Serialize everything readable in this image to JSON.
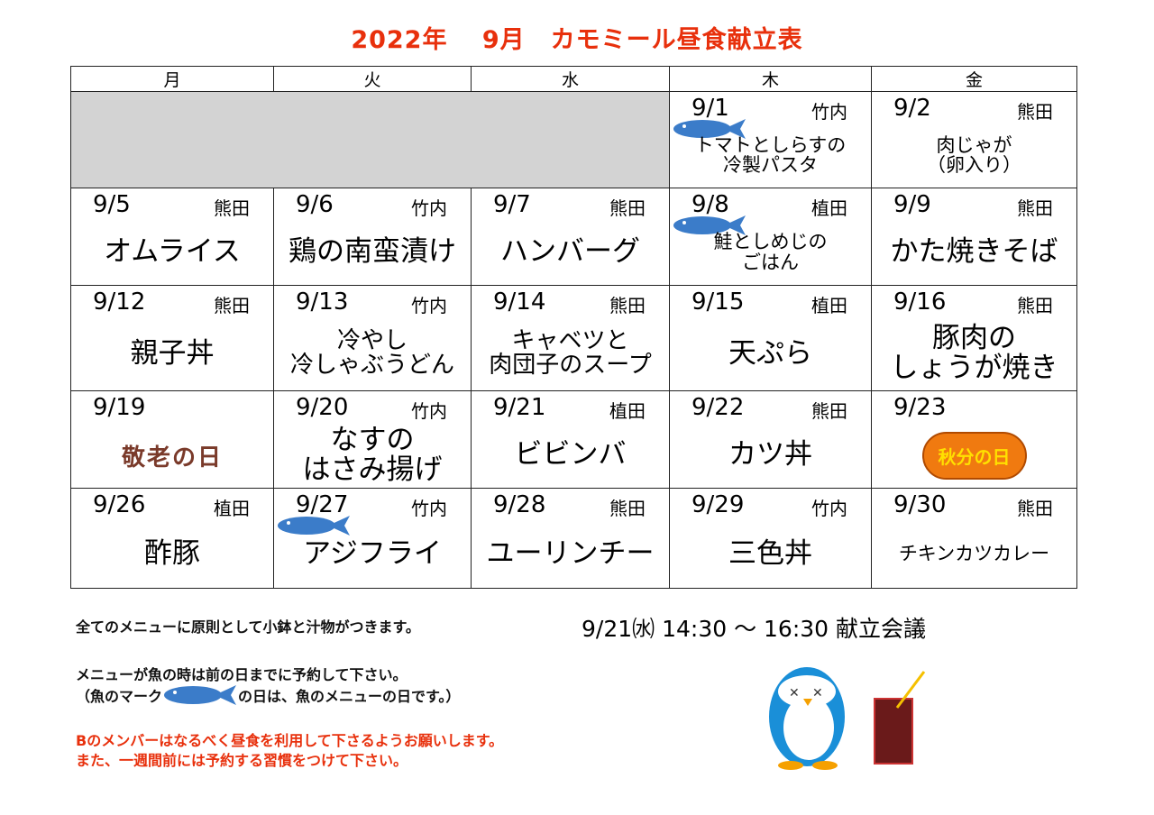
{
  "title": {
    "year": "2022年",
    "month": "9月",
    "name": "カモミール昼食献立表"
  },
  "weekdays": [
    "月",
    "火",
    "水",
    "木",
    "金"
  ],
  "weeks": [
    [
      null,
      null,
      null,
      {
        "date": "9/1",
        "cook": "竹内",
        "menu": [
          "トマトとしらすの",
          "冷製パスタ"
        ],
        "fish": true,
        "size": "small"
      },
      {
        "date": "9/2",
        "cook": "熊田",
        "menu": [
          "肉じゃが",
          "（卵入り）"
        ],
        "size": "small"
      }
    ],
    [
      {
        "date": "9/5",
        "cook": "熊田",
        "menu": [
          "オムライス"
        ],
        "size": "big"
      },
      {
        "date": "9/6",
        "cook": "竹内",
        "menu": [
          "鶏の南蛮漬け"
        ],
        "size": "big"
      },
      {
        "date": "9/7",
        "cook": "熊田",
        "menu": [
          "ハンバーグ"
        ],
        "size": "big"
      },
      {
        "date": "9/8",
        "cook": "植田",
        "menu": [
          "鮭としめじの",
          "ごはん"
        ],
        "fish": true,
        "size": "small"
      },
      {
        "date": "9/9",
        "cook": "熊田",
        "menu": [
          "かた焼きそば"
        ],
        "size": "big"
      }
    ],
    [
      {
        "date": "9/12",
        "cook": "熊田",
        "menu": [
          "親子丼"
        ],
        "size": "big"
      },
      {
        "date": "9/13",
        "cook": "竹内",
        "menu": [
          "冷やし",
          "冷しゃぶうどん"
        ],
        "size": "mid"
      },
      {
        "date": "9/14",
        "cook": "熊田",
        "menu": [
          "キャベツと",
          "肉団子のスープ"
        ],
        "size": "mid"
      },
      {
        "date": "9/15",
        "cook": "植田",
        "menu": [
          "天ぷら"
        ],
        "size": "big"
      },
      {
        "date": "9/16",
        "cook": "熊田",
        "menu": [
          "豚肉の",
          "しょうが焼き"
        ],
        "size": "big"
      }
    ],
    [
      {
        "date": "9/19",
        "cook": "",
        "holiday": "敬老の日",
        "holiday_style": "keiro"
      },
      {
        "date": "9/20",
        "cook": "竹内",
        "menu": [
          "なすの",
          "はさみ揚げ"
        ],
        "size": "big"
      },
      {
        "date": "9/21",
        "cook": "植田",
        "menu": [
          "ビビンバ"
        ],
        "size": "big"
      },
      {
        "date": "9/22",
        "cook": "熊田",
        "menu": [
          "カツ丼"
        ],
        "size": "big"
      },
      {
        "date": "9/23",
        "cook": "",
        "holiday": "秋分の日",
        "holiday_style": "shubun"
      }
    ],
    [
      {
        "date": "9/26",
        "cook": "植田",
        "menu": [
          "酢豚"
        ],
        "size": "big"
      },
      {
        "date": "9/27",
        "cook": "竹内",
        "menu": [
          "アジフライ"
        ],
        "fish": true,
        "size": "big"
      },
      {
        "date": "9/28",
        "cook": "熊田",
        "menu": [
          "ユーリンチー"
        ],
        "size": "big"
      },
      {
        "date": "9/29",
        "cook": "竹内",
        "menu": [
          "三色丼"
        ],
        "size": "big"
      },
      {
        "date": "9/30",
        "cook": "熊田",
        "menu": [
          "チキンカツカレー"
        ],
        "size": "small"
      }
    ]
  ],
  "notes": {
    "line1": "全てのメニューに原則として小鉢と汁物がつきます。",
    "line2": "メニューが魚の時は前の日までに予約して下さい。",
    "line3a": "（魚のマーク",
    "line3b": "の日は、魚のメニューの日です。）",
    "line4": "Bのメンバーはなるべく昼食を利用して下さるようお願いします。",
    "line5": "また、一週間前には予約する習慣をつけて下さい。"
  },
  "meeting": "9/21㈬ 14:30 ～ 16:30 献立会議",
  "colors": {
    "title": "#e8300c",
    "fish": "#3b7cc9",
    "blank": "#d3d3d3"
  }
}
